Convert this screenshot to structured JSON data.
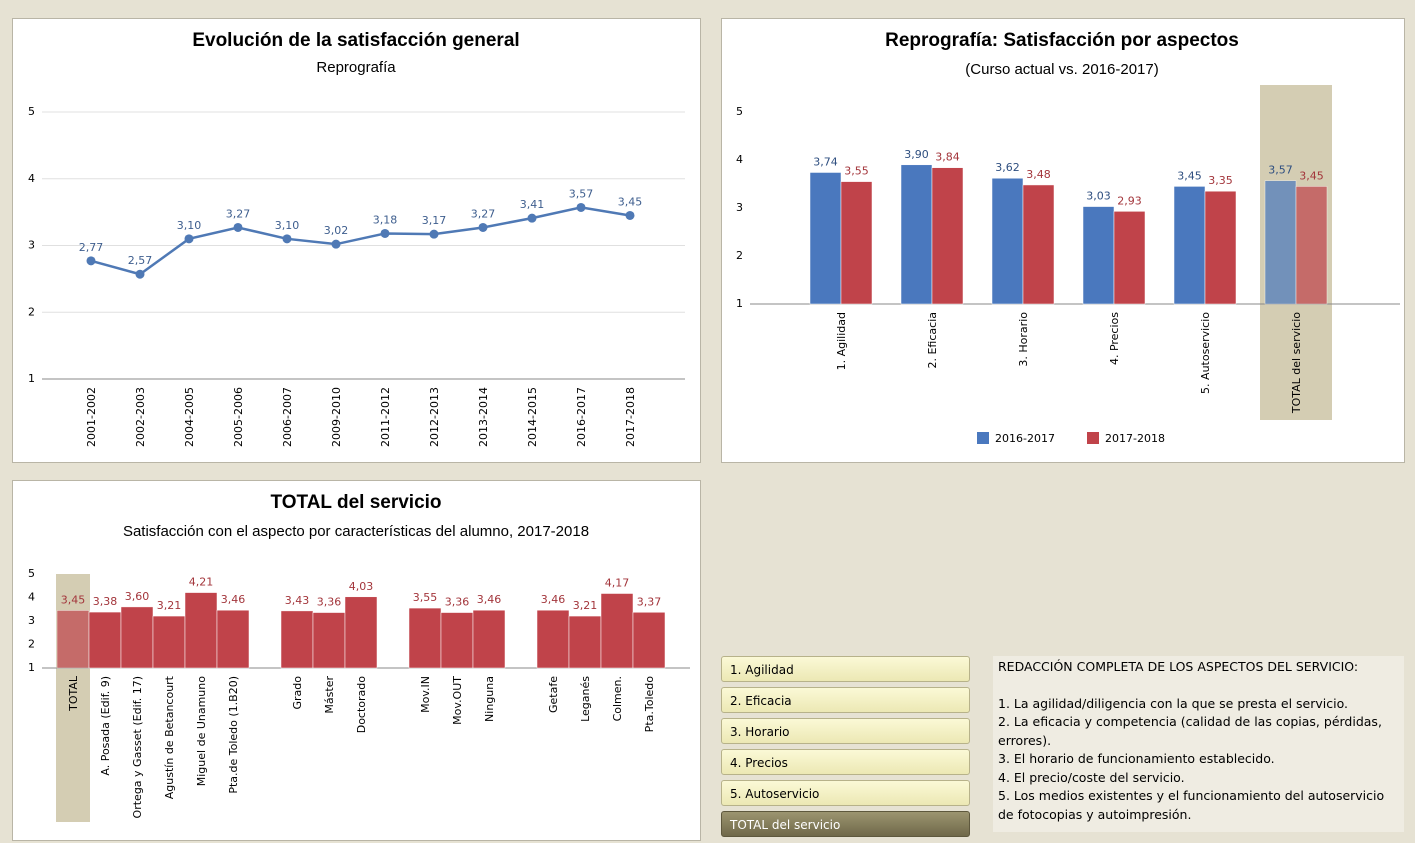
{
  "chart_data": [
    {
      "type": "line",
      "title": "Evolución de la satisfacción general",
      "subtitle": "Reprografía",
      "categories": [
        "2001-2002",
        "2002-2003",
        "2004-2005",
        "2005-2006",
        "2006-2007",
        "2009-2010",
        "2011-2012",
        "2012-2013",
        "2013-2014",
        "2014-2015",
        "2016-2017",
        "2017-2018"
      ],
      "values": [
        2.77,
        2.57,
        3.1,
        3.27,
        3.1,
        3.02,
        3.18,
        3.17,
        3.27,
        3.41,
        3.57,
        3.45
      ],
      "value_labels": [
        "2,77",
        "2,57",
        "3,10",
        "3,27",
        "3,10",
        "3,02",
        "3,18",
        "3,17",
        "3,27",
        "3,41",
        "3,57",
        "3,45"
      ],
      "color": "#4f79b5",
      "ylim": [
        1,
        5
      ],
      "yticks": [
        1,
        2,
        3,
        4,
        5
      ],
      "grid": true
    },
    {
      "type": "bar",
      "title": "Reprografía: Satisfacción por aspectos",
      "subtitle": "(Curso actual vs. 2016-2017)",
      "categories": [
        "1. Agilidad",
        "2. Eficacia",
        "3. Horario",
        "4. Precios",
        "5. Autoservicio",
        "TOTAL del servicio"
      ],
      "series": [
        {
          "name": "2016-2017",
          "color": "#4a78be",
          "values": [
            3.74,
            3.9,
            3.62,
            3.03,
            3.45,
            3.57
          ],
          "value_labels": [
            "3,74",
            "3,90",
            "3,62",
            "3,03",
            "3,45",
            "3,57"
          ]
        },
        {
          "name": "2017-2018",
          "color": "#c0434a",
          "values": [
            3.55,
            3.84,
            3.48,
            2.93,
            3.35,
            3.45
          ],
          "value_labels": [
            "3,55",
            "3,84",
            "3,48",
            "2,93",
            "3,35",
            "3,45"
          ]
        }
      ],
      "ylim": [
        1,
        5
      ],
      "yticks": [
        1,
        2,
        3,
        4,
        5
      ],
      "grid": false,
      "highlight": 5,
      "legend": "bottom"
    },
    {
      "type": "bar",
      "title": "TOTAL del servicio",
      "subtitle": "Satisfacción con el aspecto por características del alumno, 2017-2018",
      "categories": [
        "TOTAL",
        "A. Posada (Edif. 9)",
        "Ortega y Gasset (Edif. 17)",
        "Agustín de Betancourt",
        "Miguel de Unamuno",
        "Pta.de Toledo (1.B20)",
        null,
        "Grado",
        "Máster",
        "Doctorado",
        null,
        "Mov.IN",
        "Mov.OUT",
        "Ninguna",
        null,
        "Getafe",
        "Leganés",
        "Colmen.",
        "Pta.Toledo"
      ],
      "series": [
        {
          "name": "2017-2018",
          "color": "#c0434a",
          "values": [
            3.45,
            3.38,
            3.6,
            3.21,
            4.21,
            3.46,
            null,
            3.43,
            3.36,
            4.03,
            null,
            3.55,
            3.36,
            3.46,
            null,
            3.46,
            3.21,
            4.17,
            3.37
          ],
          "value_labels": [
            "3,45",
            "3,38",
            "3,60",
            "3,21",
            "4,21",
            "3,46",
            null,
            "3,43",
            "3,36",
            "4,03",
            null,
            "3,55",
            "3,36",
            "3,46",
            null,
            "3,46",
            "3,21",
            "4,17",
            "3,37"
          ]
        }
      ],
      "ylim": [
        1,
        5
      ],
      "yticks": [
        1,
        2,
        3,
        4,
        5
      ],
      "grid": false,
      "highlight": 0
    }
  ],
  "buttons": [
    "1. Agilidad",
    "2. Eficacia",
    "3. Horario",
    "4. Precios",
    "5. Autoservicio",
    "TOTAL del servicio"
  ],
  "selected_button": 5,
  "description": {
    "title": "REDACCIÓN COMPLETA DE LOS ASPECTOS DEL SERVICIO:",
    "items": [
      "1. La agilidad/diligencia con la que se presta el servicio.",
      "2. La eficacia y competencia (calidad de las copias, pérdidas, errores).",
      "3. El horario de funcionamiento establecido.",
      "4. El precio/coste del servicio.",
      "5. Los medios existentes y el funcionamiento del autoservicio de fotocopias y autoimpresión."
    ]
  }
}
